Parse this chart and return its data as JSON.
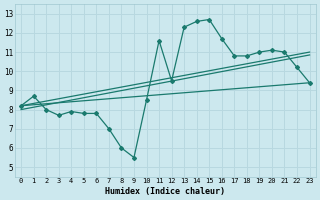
{
  "xlabel": "Humidex (Indice chaleur)",
  "bg_color": "#cce8ee",
  "grid_color": "#b8d8e0",
  "line_color": "#1a7a6e",
  "xlim": [
    -0.5,
    23.5
  ],
  "ylim": [
    4.5,
    13.5
  ],
  "xticks": [
    0,
    1,
    2,
    3,
    4,
    5,
    6,
    7,
    8,
    9,
    10,
    11,
    12,
    13,
    14,
    15,
    16,
    17,
    18,
    19,
    20,
    21,
    22,
    23
  ],
  "yticks": [
    5,
    6,
    7,
    8,
    9,
    10,
    11,
    12,
    13
  ],
  "series1_x": [
    0,
    1,
    2,
    3,
    4,
    5,
    6,
    7,
    8,
    9,
    10,
    11,
    12,
    13,
    14,
    15,
    16,
    17,
    18,
    19,
    20,
    21,
    22,
    23
  ],
  "series1_y": [
    8.2,
    8.7,
    8.0,
    7.7,
    7.9,
    7.8,
    7.8,
    7.0,
    6.0,
    5.5,
    8.5,
    11.6,
    9.5,
    12.3,
    12.6,
    12.7,
    11.7,
    10.8,
    10.8,
    11.0,
    11.1,
    11.0,
    10.2,
    9.4
  ],
  "series2_x": [
    0,
    23
  ],
  "series2_y": [
    8.2,
    9.4
  ],
  "series3_x": [
    0,
    23
  ],
  "series3_y": [
    8.0,
    10.85
  ],
  "series4_x": [
    0,
    23
  ],
  "series4_y": [
    8.2,
    11.0
  ]
}
